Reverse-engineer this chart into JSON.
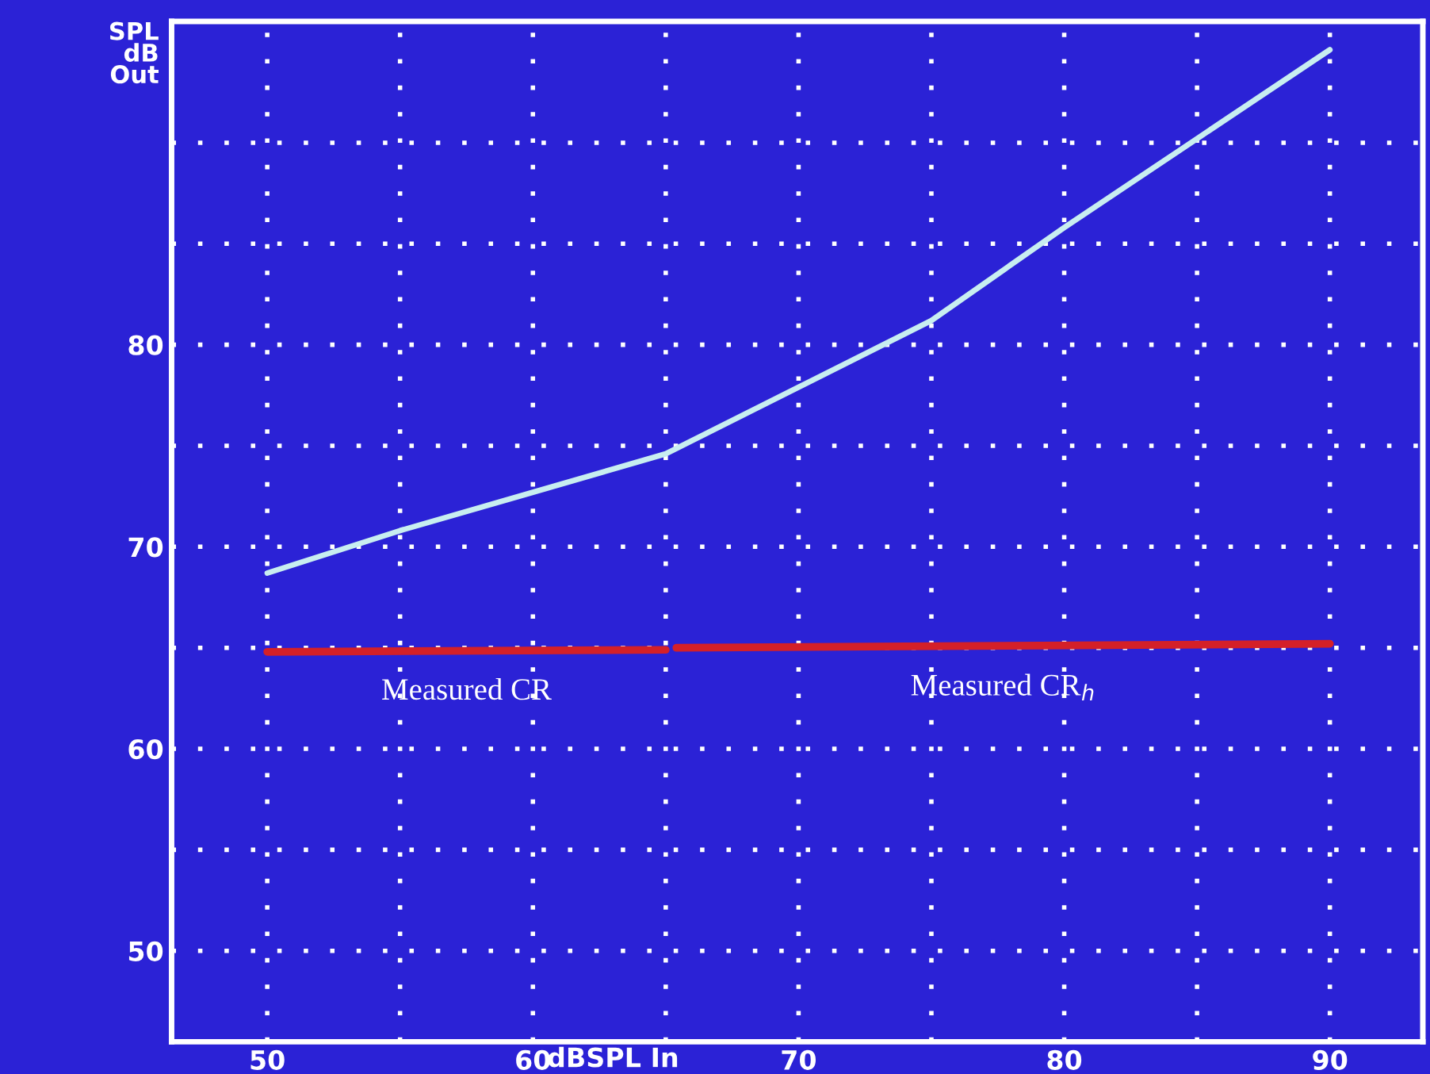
{
  "chart_data": {
    "type": "line",
    "xlabel": "dBSPL In",
    "ylabel": "SPL\ndB\nOut",
    "series": [
      {
        "color": "#c8eef0",
        "x": [
          50,
          55,
          60,
          65,
          70,
          75,
          80,
          85,
          90
        ],
        "values": [
          68.7,
          70.8,
          72.7,
          74.6,
          77.9,
          81.2,
          85.8,
          90.2,
          94.6
        ]
      },
      {
        "name": "Measured CR",
        "color": "#d42028",
        "x": [
          50,
          65
        ],
        "values": [
          64.8,
          64.9
        ]
      },
      {
        "name": "Measured CR$_{h}$",
        "color": "#d42028",
        "x": [
          65.4,
          90
        ],
        "values": [
          65.0,
          65.2
        ]
      }
    ],
    "xlim": [
      46.4,
      93.5
    ],
    "ylim": [
      45.5,
      96
    ],
    "xticks": [
      50,
      {
        "value": 55,
        "label": null
      },
      60,
      {
        "value": 65,
        "label": null
      },
      70,
      {
        "value": 75,
        "label": null
      },
      80,
      {
        "value": 85,
        "label": null
      },
      90
    ],
    "yticks": [
      50,
      {
        "value": 55,
        "label": null
      },
      60,
      {
        "value": 65,
        "label": null
      },
      70,
      {
        "value": 75,
        "label": null
      },
      80,
      {
        "value": 85,
        "label": null
      },
      {
        "value": 90,
        "label": null
      }
    ],
    "grid": true,
    "marker": "none",
    "line_style": "solid",
    "legend": false
  }
}
